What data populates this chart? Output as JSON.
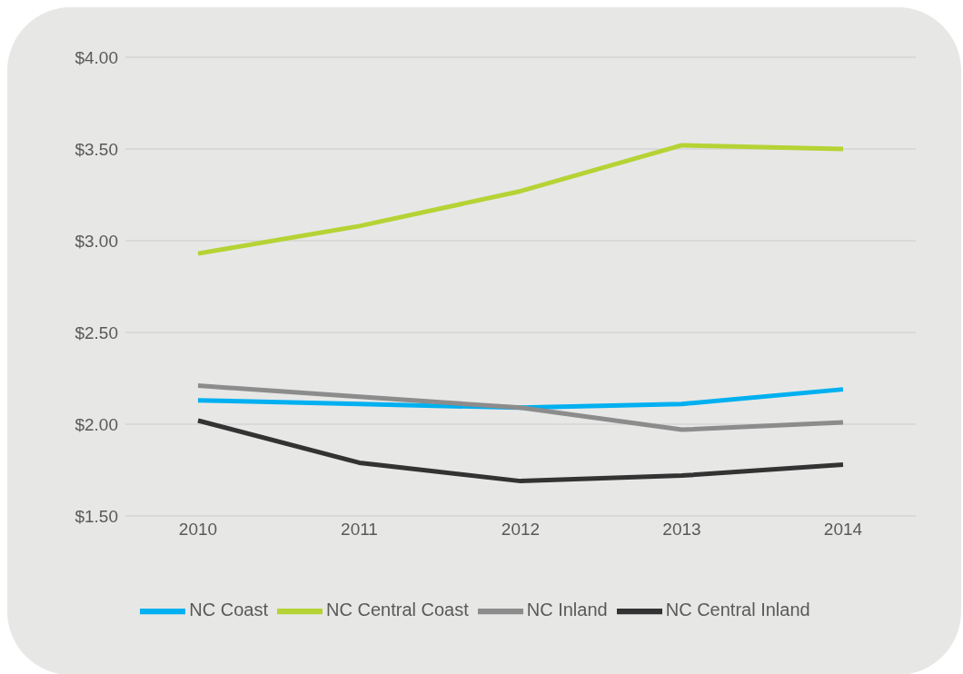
{
  "chart_data": {
    "type": "line",
    "categories": [
      "2010",
      "2011",
      "2012",
      "2013",
      "2014"
    ],
    "series": [
      {
        "name": "NC Coast",
        "color": "#00b0f0",
        "values": [
          2.13,
          2.11,
          2.09,
          2.11,
          2.19
        ]
      },
      {
        "name": "NC Central Coast",
        "color": "#b5d334",
        "values": [
          2.93,
          3.08,
          3.27,
          3.52,
          3.5
        ]
      },
      {
        "name": "NC Inland",
        "color": "#8c8c8c",
        "values": [
          2.21,
          2.15,
          2.09,
          1.97,
          2.01
        ]
      },
      {
        "name": "NC Central Inland",
        "color": "#333333",
        "values": [
          2.02,
          1.79,
          1.69,
          1.72,
          1.78
        ]
      }
    ],
    "ylim": [
      1.5,
      4
    ],
    "yticks": [
      {
        "value": 1.5,
        "label": "$1.50"
      },
      {
        "value": 2,
        "label": "$2.00"
      },
      {
        "value": 2.5,
        "label": "$2.50"
      },
      {
        "value": 3,
        "label": "$3.00"
      },
      {
        "value": 3.5,
        "label": "$3.50"
      },
      {
        "value": 4,
        "label": "$4.00"
      }
    ],
    "grid": "y",
    "legend": "bottom",
    "marker": "none",
    "line_style": "solid"
  }
}
